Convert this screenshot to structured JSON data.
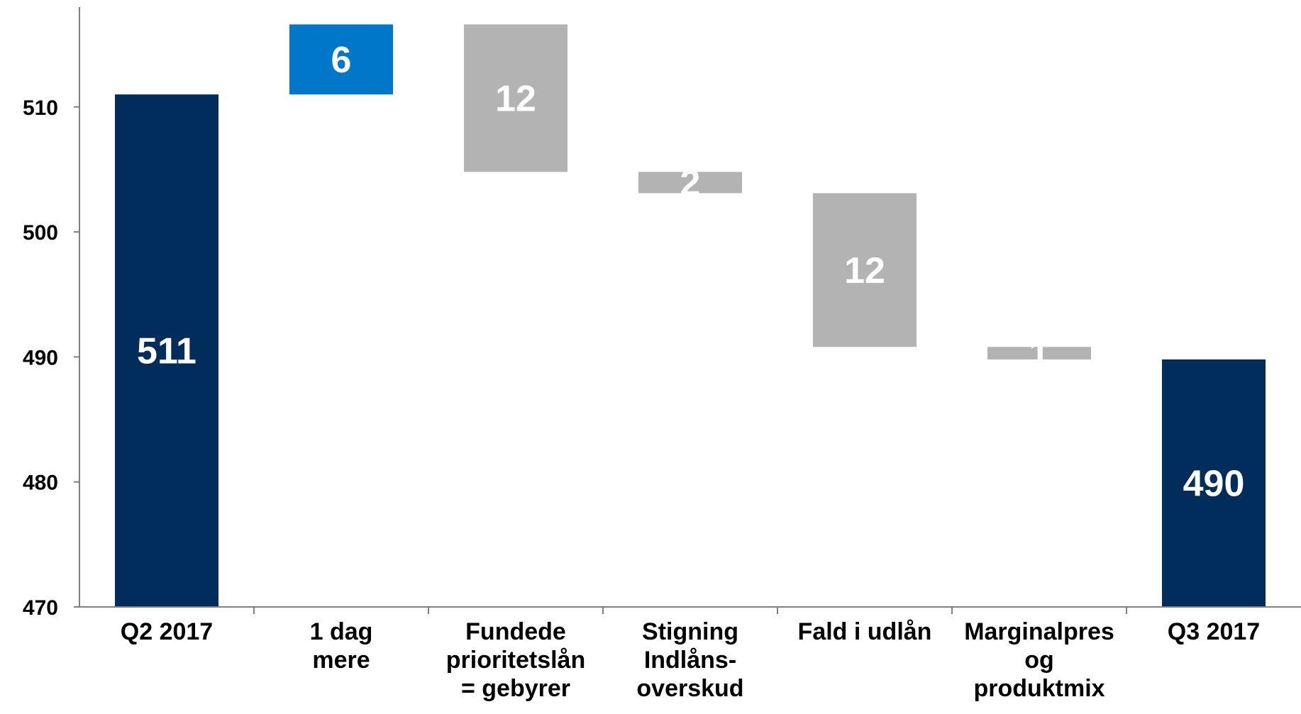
{
  "chart_data": {
    "type": "bar",
    "subtype": "waterfall",
    "title": "",
    "xlabel": "",
    "ylabel": "",
    "ylim": [
      470,
      518
    ],
    "yticks": [
      470,
      480,
      490,
      500,
      510
    ],
    "grid": false,
    "legend": "none",
    "colors": {
      "total": "#002D5B",
      "increase": "#0077C8",
      "decrease": "#B3B3B3",
      "axis": "#7F7F7F",
      "label": "#FFFFFF"
    },
    "bars": [
      {
        "category": [
          "Q2 2017"
        ],
        "kind": "total",
        "start": 470,
        "end": 511,
        "label": "511"
      },
      {
        "category": [
          "1 dag",
          "mere"
        ],
        "kind": "increase",
        "start": 511,
        "end": 516.6,
        "label": "6"
      },
      {
        "category": [
          "Fundede",
          "prioritetslån",
          "= gebyrer"
        ],
        "kind": "decrease",
        "start": 516.6,
        "end": 504.8,
        "label": "12"
      },
      {
        "category": [
          "Stigning",
          "Indlåns-",
          "overskud"
        ],
        "kind": "decrease",
        "start": 504.8,
        "end": 503.1,
        "label": "2"
      },
      {
        "category": [
          "Fald i udlån"
        ],
        "kind": "decrease",
        "start": 503.1,
        "end": 490.8,
        "label": "12"
      },
      {
        "category": [
          "Marginalpres",
          "og",
          "produktmix"
        ],
        "kind": "decrease",
        "start": 490.8,
        "end": 489.8,
        "label": "1"
      },
      {
        "category": [
          "Q3 2017"
        ],
        "kind": "total",
        "start": 470,
        "end": 489.8,
        "label": "490"
      }
    ]
  }
}
